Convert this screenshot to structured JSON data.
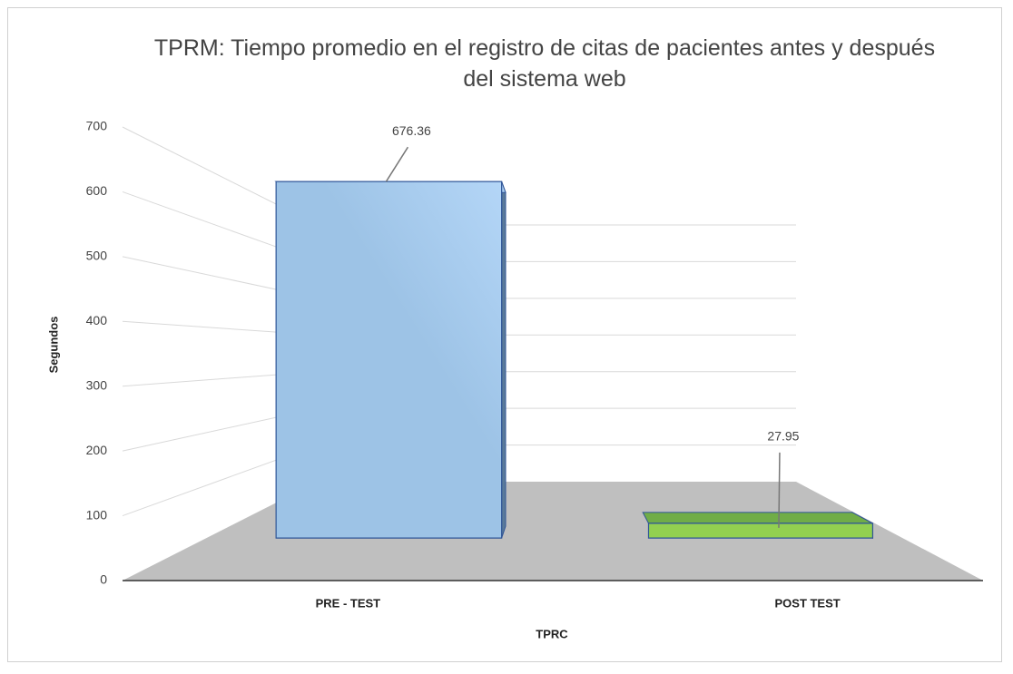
{
  "chart_data": {
    "type": "bar3d",
    "title": "TPRM: Tiempo promedio en el registro de citas de pacientes antes y después del sistema web",
    "categories": [
      "PRE - TEST",
      "POST TEST"
    ],
    "values": [
      676.36,
      27.95
    ],
    "colors": [
      "#9dc3e6",
      "#70ad47"
    ],
    "xlabel": "TPRC",
    "ylabel": "Segundos",
    "ylim": [
      0,
      700
    ],
    "yticks": [
      0,
      100,
      200,
      300,
      400,
      500,
      600,
      700
    ],
    "grid": true
  }
}
